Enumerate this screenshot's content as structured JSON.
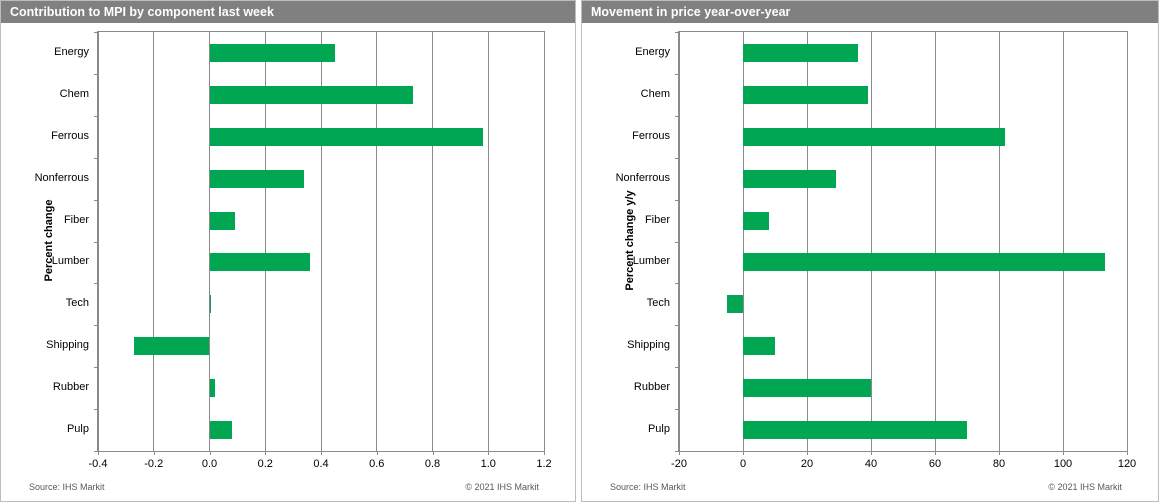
{
  "colors": {
    "bar_green": "#00A651",
    "header_bg": "#808080",
    "gridline": "#8a8a8a",
    "footer_text": "#595959"
  },
  "chart_data": [
    {
      "type": "bar",
      "orientation": "horizontal",
      "title": "Contribution to MPI by component last week",
      "ylabel": "Percent change",
      "categories": [
        "Energy",
        "Chem",
        "Ferrous",
        "Nonferrous",
        "Fiber",
        "Lumber",
        "Tech",
        "Shipping",
        "Rubber",
        "Pulp"
      ],
      "values": [
        0.45,
        0.73,
        0.98,
        0.34,
        0.09,
        0.36,
        0.005,
        -0.27,
        0.02,
        0.08
      ],
      "xlim": [
        -0.4,
        1.2
      ],
      "x_ticks": [
        -0.4,
        -0.2,
        0.0,
        0.2,
        0.4,
        0.6,
        0.8,
        1.0,
        1.2
      ],
      "x_tick_labels": [
        "-0.4",
        "-0.2",
        "0.0",
        "0.2",
        "0.4",
        "0.6",
        "0.8",
        "1.0",
        "1.2"
      ],
      "grid": true,
      "legend": false,
      "bar_color": "#00A651",
      "source": "Source:  IHS Markit",
      "copyright": "© 2021  IHS Markit"
    },
    {
      "type": "bar",
      "orientation": "horizontal",
      "title": "Movement in price year-over-year",
      "ylabel": "Percent change y/y",
      "categories": [
        "Energy",
        "Chem",
        "Ferrous",
        "Nonferrous",
        "Fiber",
        "Lumber",
        "Tech",
        "Shipping",
        "Rubber",
        "Pulp"
      ],
      "values": [
        36,
        39,
        82,
        29,
        8,
        113,
        -5,
        10,
        40,
        70
      ],
      "xlim": [
        -20,
        120
      ],
      "x_ticks": [
        -20,
        0,
        20,
        40,
        60,
        80,
        100,
        120
      ],
      "x_tick_labels": [
        "-20",
        "0",
        "20",
        "40",
        "60",
        "80",
        "100",
        "120"
      ],
      "grid": true,
      "legend": false,
      "bar_color": "#00A651",
      "source": "Source:  IHS Markit",
      "copyright": "© 2021  IHS Markit"
    }
  ]
}
